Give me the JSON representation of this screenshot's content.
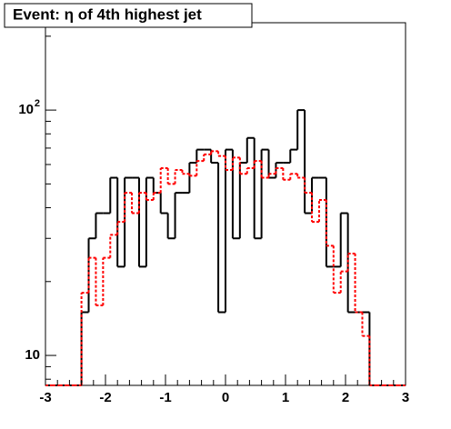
{
  "chart_data": {
    "type": "histogram",
    "title": "Event: η of 4th highest jet",
    "bins": [
      -3,
      -2.88,
      -2.76,
      -2.64,
      -2.52,
      -2.4,
      -2.28,
      -2.16,
      -2.04,
      -1.92,
      -1.8,
      -1.68,
      -1.56,
      -1.44,
      -1.32,
      -1.2,
      -1.08,
      -0.96,
      -0.84,
      -0.72,
      -0.6,
      -0.48,
      -0.36,
      -0.24,
      -0.12,
      0,
      0.12,
      0.24,
      0.36,
      0.48,
      0.6,
      0.72,
      0.84,
      0.96,
      1.08,
      1.2,
      1.32,
      1.44,
      1.56,
      1.68,
      1.8,
      1.92,
      2.04,
      2.16,
      2.28,
      2.4,
      2.52,
      2.64,
      2.76,
      2.88,
      3
    ],
    "series": [
      {
        "color": "#000000",
        "dash": false,
        "values": [
          0,
          0,
          0,
          0,
          0,
          15,
          30,
          38,
          38,
          53,
          23,
          53,
          53,
          23,
          53,
          46,
          38,
          30,
          46,
          46,
          61,
          69,
          69,
          61,
          15,
          69,
          30,
          61,
          77,
          30,
          69,
          53,
          61,
          61,
          69,
          100,
          38,
          53,
          53,
          23,
          23,
          38,
          15,
          15,
          15,
          0,
          0,
          0,
          0,
          0
        ]
      },
      {
        "color": "#ff0000",
        "dash": true,
        "values": [
          0,
          0,
          0,
          0,
          0,
          18,
          25,
          16,
          25,
          31,
          35,
          46,
          38,
          46,
          43,
          46,
          58,
          50,
          57,
          55,
          54,
          62,
          66,
          68,
          65,
          57,
          64,
          55,
          58,
          62,
          53,
          55,
          58,
          52,
          55,
          53,
          46,
          35,
          43,
          28,
          18,
          22,
          26,
          15,
          12,
          0,
          0,
          0,
          0,
          0
        ]
      }
    ],
    "xlim": [
      -3,
      3
    ],
    "xticks": [
      -3,
      -2,
      -1,
      0,
      1,
      2,
      3
    ],
    "ylim": [
      7.55,
      227
    ],
    "ylog": true,
    "yticks": [
      10,
      {
        "value": 100,
        "label": "10",
        "exponent": "2"
      }
    ],
    "yminorticks": [
      8,
      9,
      20,
      30,
      40,
      50,
      60,
      70,
      80,
      90,
      200
    ]
  }
}
